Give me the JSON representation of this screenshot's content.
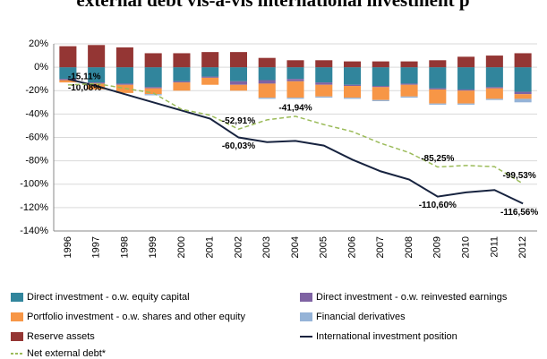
{
  "chart_data": {
    "type": "bar",
    "title": "external debt vis-à-vis international investment p",
    "categories": [
      "1996",
      "1997",
      "1998",
      "1999",
      "2000",
      "2001",
      "2002",
      "2003",
      "2004",
      "2005",
      "2006",
      "2007",
      "2008",
      "2009",
      "2010",
      "2011",
      "2012"
    ],
    "ylim": [
      -140,
      20
    ],
    "yticks": [
      {
        "value": -140,
        "label": "-140%"
      },
      {
        "value": -120,
        "label": "-120%"
      },
      {
        "value": -100,
        "label": "-100%"
      },
      {
        "value": -80,
        "label": "-80%"
      },
      {
        "value": -60,
        "label": "-60%"
      },
      {
        "value": -40,
        "label": "-40%"
      },
      {
        "value": -20,
        "label": "-20%"
      },
      {
        "value": 0,
        "label": "0%"
      },
      {
        "value": 20,
        "label": "20%"
      }
    ],
    "grid": true,
    "series": [
      {
        "name": "Direct investment - o.w. equity capital",
        "color": "#31859c",
        "values": [
          -10,
          -13,
          -14,
          -17,
          -12,
          -8,
          -12,
          -11,
          -10,
          -13,
          -15,
          -16,
          -14,
          -18,
          -19,
          -17,
          -21
        ]
      },
      {
        "name": "Direct investment - o.w. reinvested earnings",
        "color": "#7f63a3",
        "values": [
          -1,
          -1,
          -1,
          -1,
          -1,
          -1,
          -3,
          -3,
          -2,
          -2,
          -1,
          -1,
          -1,
          -1,
          -1,
          -1,
          -2
        ]
      },
      {
        "name": "Portfolio investment - o.w. shares and other equity",
        "color": "#f79646",
        "values": [
          -2,
          -5,
          -7,
          -5,
          -7,
          -6,
          -5,
          -12,
          -14,
          -10,
          -10,
          -11,
          -10,
          -12,
          -11,
          -9,
          -4
        ]
      },
      {
        "name": "Financial derivatives",
        "color": "#95b3d7",
        "values": [
          0,
          0,
          0,
          -1,
          0,
          0,
          0,
          -1,
          -1,
          -1,
          -1,
          -1,
          -1,
          -1,
          -1,
          -1,
          -3
        ]
      },
      {
        "name": "Reserve assets",
        "color": "#943634",
        "values": [
          18,
          19,
          17,
          12,
          12,
          13,
          13,
          8,
          6,
          6,
          5,
          5,
          5,
          6,
          9,
          10,
          12
        ]
      },
      {
        "name": "International investment position",
        "type": "line",
        "color": "#17233f",
        "values": [
          -10.08,
          -16,
          -23,
          -30,
          -37,
          -44,
          -60.03,
          -64,
          -63,
          -67,
          -79,
          -89,
          -96,
          -110.6,
          -107,
          -105,
          -116.56
        ],
        "value_labels": [
          "-10,08%",
          null,
          null,
          null,
          null,
          null,
          "-60,03%",
          null,
          null,
          null,
          null,
          null,
          null,
          "-110,60%",
          null,
          null,
          "-116,56%"
        ]
      },
      {
        "name": "Net external debt*",
        "type": "line",
        "dashed": true,
        "color": "#9bbb59",
        "values": [
          -15.11,
          -14,
          -18,
          -22,
          -36,
          -41,
          -52.91,
          -45,
          -41.94,
          -49,
          -55,
          -65,
          -73,
          -85.25,
          -84,
          -85,
          -99.53
        ],
        "value_labels": [
          "-15,11%",
          null,
          null,
          null,
          null,
          null,
          "-52,91%",
          null,
          "-41,94%",
          null,
          null,
          null,
          null,
          "-85,25%",
          null,
          null,
          "-99,53%"
        ]
      }
    ]
  }
}
